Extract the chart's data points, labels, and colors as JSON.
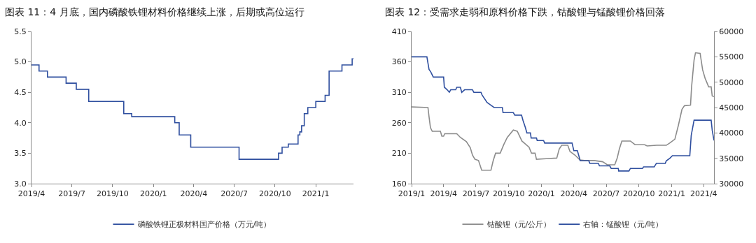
{
  "chart_data": [
    {
      "type": "step",
      "title": "图表 11：4 月底，国内磷酸铁锂材料价格继续上涨，后期或高位运行",
      "legend": "bottom",
      "marker": "none",
      "line_style": "solid",
      "xlim": [
        "2019-04-01",
        "2021-03-27"
      ],
      "xticks": [
        {
          "value": "2019-04-01",
          "label": "2019/4"
        },
        {
          "value": "2019-07-01",
          "label": "2019/7"
        },
        {
          "value": "2019-10-01",
          "label": "2019/10"
        },
        {
          "value": "2020-01-01",
          "label": "2020/1"
        },
        {
          "value": "2020-04-01",
          "label": "2020/4"
        },
        {
          "value": "2020-07-01",
          "label": "2020/7"
        },
        {
          "value": "2020-10-01",
          "label": "2020/10"
        },
        {
          "value": "2021-01-01",
          "label": "2021/1"
        }
      ],
      "ylim": [
        3.0,
        5.5
      ],
      "yticks": [
        {
          "value": 3.0,
          "label": "3.0"
        },
        {
          "value": 3.5,
          "label": "3.5"
        },
        {
          "value": 4.0,
          "label": "4.0"
        },
        {
          "value": 4.5,
          "label": "4.5"
        },
        {
          "value": 5.0,
          "label": "5.0"
        },
        {
          "value": 5.5,
          "label": "5.5"
        }
      ],
      "series": [
        {
          "name": "磷酸铁锂正极材料国产价格（万元/吨）",
          "color": "#2f4f9f",
          "x": [
            "2019-04-01",
            "2019-04-18",
            "2019-05-07",
            "2019-06-18",
            "2019-07-11",
            "2019-08-08",
            "2019-10-26",
            "2019-11-13",
            "2020-02-18",
            "2020-02-28",
            "2020-03-25",
            "2020-07-12",
            "2020-10-09",
            "2020-10-17",
            "2020-10-31",
            "2020-11-22",
            "2020-11-26",
            "2020-11-30",
            "2020-12-06",
            "2020-12-14",
            "2021-01-01",
            "2021-01-22",
            "2021-01-31",
            "2021-03-01",
            "2021-03-24",
            "2021-03-27"
          ],
          "values": [
            4.95,
            4.85,
            4.75,
            4.65,
            4.55,
            4.35,
            4.15,
            4.1,
            4.0,
            3.8,
            3.6,
            3.4,
            3.5,
            3.6,
            3.65,
            3.8,
            3.85,
            3.95,
            4.15,
            4.25,
            4.35,
            4.45,
            4.85,
            4.95,
            5.05,
            5.05
          ]
        }
      ]
    },
    {
      "type": "line",
      "title": "图表 12：受需求走弱和原料价格下跌，钴酸锂与锰酸锂价格回落",
      "legend": "bottom",
      "marker": "none",
      "line_style": "solid",
      "xlim": [
        "2019-01-01",
        "2021-04-30"
      ],
      "xticks": [
        {
          "value": "2019-01-01",
          "label": "2019/1"
        },
        {
          "value": "2019-04-01",
          "label": "2019/4"
        },
        {
          "value": "2019-07-01",
          "label": "2019/7"
        },
        {
          "value": "2019-10-01",
          "label": "2019/10"
        },
        {
          "value": "2020-01-01",
          "label": "2020/1"
        },
        {
          "value": "2020-04-01",
          "label": "2020/4"
        },
        {
          "value": "2020-07-01",
          "label": "2020/7"
        },
        {
          "value": "2020-10-01",
          "label": "2020/10"
        },
        {
          "value": "2021-01-01",
          "label": "2021/1"
        },
        {
          "value": "2021-04-01",
          "label": "2021/4"
        }
      ],
      "ylim": [
        160,
        410
      ],
      "yticks": [
        160,
        210,
        260,
        310,
        360,
        410
      ],
      "y2lim": [
        30000,
        60000
      ],
      "y2ticks": [
        30000,
        35000,
        40000,
        45000,
        50000,
        55000,
        60000
      ],
      "series": [
        {
          "name": "钴酸锂（元/公斤）",
          "color": "#8c8c8c",
          "x": [
            "2019-01-01",
            "2019-02-16",
            "2019-02-19",
            "2019-02-23",
            "2019-02-28",
            "2019-03-23",
            "2019-03-27",
            "2019-04-01",
            "2019-04-04",
            "2019-05-08",
            "2019-05-18",
            "2019-06-04",
            "2019-06-15",
            "2019-06-21",
            "2019-06-28",
            "2019-07-08",
            "2019-07-17",
            "2019-08-12",
            "2019-08-18",
            "2019-08-25",
            "2019-09-07",
            "2019-09-17",
            "2019-09-27",
            "2019-10-14",
            "2019-10-25",
            "2019-11-07",
            "2019-11-27",
            "2019-12-04",
            "2019-12-14",
            "2019-12-18",
            "2020-01-14",
            "2020-02-13",
            "2020-02-20",
            "2020-02-27",
            "2020-03-15",
            "2020-03-21",
            "2020-04-04",
            "2020-04-18",
            "2020-05-01",
            "2020-05-28",
            "2020-06-21",
            "2020-07-04",
            "2020-07-25",
            "2020-08-01",
            "2020-08-07",
            "2020-08-14",
            "2020-09-07",
            "2020-09-20",
            "2020-10-17",
            "2020-10-24",
            "2020-11-20",
            "2020-12-17",
            "2020-12-27",
            "2021-01-10",
            "2021-01-20",
            "2021-01-30",
            "2021-02-06",
            "2021-02-23",
            "2021-02-26",
            "2021-03-05",
            "2021-03-09",
            "2021-03-22",
            "2021-03-29",
            "2021-04-05",
            "2021-04-15",
            "2021-04-22",
            "2021-04-25",
            "2021-04-30"
          ],
          "values": [
            286,
            285,
            270,
            252,
            246,
            246,
            238,
            238,
            242,
            242,
            236,
            229,
            219,
            207,
            200,
            198,
            182,
            182,
            197,
            210,
            210,
            224,
            236,
            248,
            246,
            230,
            220,
            210,
            210,
            200,
            201,
            202,
            217,
            223,
            223,
            213,
            207,
            199,
            198,
            198,
            196,
            191,
            191,
            202,
            217,
            230,
            230,
            224,
            224,
            222,
            223,
            223,
            227,
            233,
            256,
            282,
            288,
            289,
            319,
            363,
            375,
            374,
            347,
            333,
            319,
            319,
            304,
            303
          ]
        },
        {
          "name": "右轴：锰酸锂（元/吨）",
          "color": "#2f4f9f",
          "axis": "y2",
          "x": [
            "2019-01-01",
            "2019-02-13",
            "2019-02-19",
            "2019-02-24",
            "2019-03-03",
            "2019-04-01",
            "2019-04-03",
            "2019-04-11",
            "2019-04-17",
            "2019-04-21",
            "2019-05-05",
            "2019-05-08",
            "2019-05-18",
            "2019-05-22",
            "2019-05-30",
            "2019-06-21",
            "2019-06-25",
            "2019-07-15",
            "2019-07-18",
            "2019-08-01",
            "2019-08-11",
            "2019-08-21",
            "2019-09-13",
            "2019-09-15",
            "2019-10-14",
            "2019-10-18",
            "2019-11-06",
            "2019-11-10",
            "2019-11-17",
            "2019-11-21",
            "2019-12-01",
            "2019-12-03",
            "2019-12-18",
            "2019-12-20",
            "2020-01-07",
            "2020-01-10",
            "2020-03-27",
            "2020-04-01",
            "2020-04-11",
            "2020-04-19",
            "2020-05-13",
            "2020-05-16",
            "2020-06-09",
            "2020-06-12",
            "2020-07-11",
            "2020-07-15",
            "2020-08-04",
            "2020-08-05",
            "2020-09-03",
            "2020-09-07",
            "2020-10-11",
            "2020-10-14",
            "2020-11-13",
            "2020-11-19",
            "2020-12-14",
            "2020-12-17",
            "2020-12-27",
            "2021-01-03",
            "2021-02-21",
            "2021-02-25",
            "2021-03-05",
            "2021-04-22",
            "2021-04-25",
            "2021-04-30"
          ],
          "values": [
            55000,
            55000,
            52500,
            52000,
            51000,
            51000,
            49000,
            48500,
            48000,
            48500,
            48500,
            49000,
            49000,
            48000,
            48500,
            48500,
            48000,
            48000,
            47500,
            46000,
            45500,
            45000,
            45000,
            44000,
            44000,
            43500,
            43500,
            42500,
            41000,
            40000,
            40000,
            39000,
            39000,
            38500,
            38500,
            38000,
            38000,
            36500,
            36500,
            34500,
            34500,
            34000,
            34000,
            33500,
            33500,
            33000,
            33000,
            32500,
            32500,
            33000,
            33000,
            33300,
            33300,
            34000,
            34000,
            34500,
            35000,
            35500,
            35500,
            39500,
            42500,
            42500,
            40500,
            38500
          ]
        }
      ]
    }
  ]
}
